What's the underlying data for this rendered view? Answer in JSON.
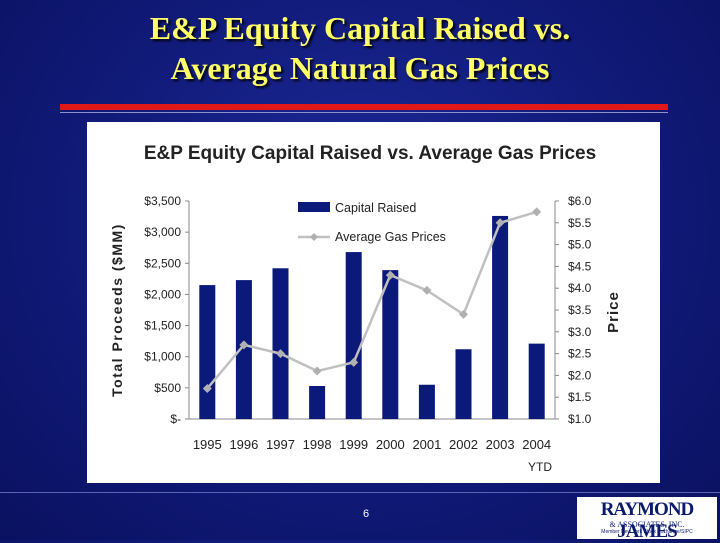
{
  "slide": {
    "title_line1": "E&P Equity Capital Raised vs.",
    "title_line2": "Average Natural Gas Prices",
    "page_number": "6",
    "logo_line1": "RAYMOND JAMES",
    "logo_line2": "& ASSOCIATES, INC.",
    "logo_line3": "Member New York Stock Exchange/SIPC"
  },
  "colors": {
    "bar": "#0b1a7a",
    "line": "#c0c0c0",
    "marker": "#b0b0b0"
  },
  "chart_data": {
    "type": "bar",
    "title": "E&P Equity Capital Raised vs. Average Gas Prices",
    "ylabel": "Total Proceeds ($MM)",
    "y2label": "Price",
    "categories": [
      "1995",
      "1996",
      "1997",
      "1998",
      "1999",
      "2000",
      "2001",
      "2002",
      "2003",
      "2004"
    ],
    "x_sublabel": "YTD",
    "y_ticks": [
      "$-",
      "$500",
      "$1,000",
      "$1,500",
      "$2,000",
      "$2,500",
      "$3,000",
      "$3,500"
    ],
    "y2_ticks": [
      "$1.0",
      "$1.5",
      "$2.0",
      "$2.5",
      "$3.0",
      "$3.5",
      "$4.0",
      "$4.5",
      "$5.0",
      "$5.5",
      "$6.0"
    ],
    "ylim": [
      0,
      3500
    ],
    "y2lim": [
      1.0,
      6.0
    ],
    "legend_position": "top-center",
    "series": [
      {
        "name": "Capital Raised",
        "type": "bar",
        "axis": "left",
        "values": [
          2150,
          2230,
          2420,
          530,
          2680,
          2390,
          550,
          1120,
          3260,
          1210
        ]
      },
      {
        "name": "Average Gas Prices",
        "type": "line",
        "axis": "right",
        "values": [
          1.7,
          2.7,
          2.5,
          2.1,
          2.3,
          4.3,
          3.95,
          3.4,
          5.5,
          5.75
        ]
      }
    ]
  }
}
